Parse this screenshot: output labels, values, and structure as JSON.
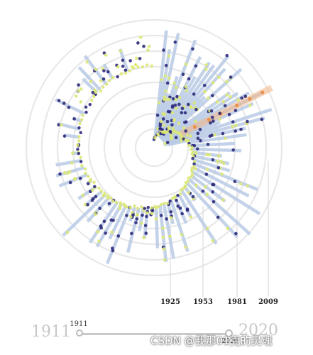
{
  "chart_data": {
    "type": "scatter",
    "layout": "radial",
    "title": "",
    "angle_axis": "year",
    "year_ticks": [
      "1925",
      "1953",
      "1981",
      "2009"
    ],
    "slider": {
      "range_start": "1911",
      "range_end": "2020",
      "current_value": "1911",
      "end_value": "2020"
    },
    "colors": {
      "ring": "#e8e8e8",
      "bar": "#b9cbe6",
      "dot_dark": "#2d2a7a",
      "dot_light": "#dde873",
      "highlight": "#f3b585",
      "highlight_dot": "#e8893e",
      "tick_line": "#d6d6d6"
    }
  },
  "watermark": "CSDN @我那01克的灵魂"
}
